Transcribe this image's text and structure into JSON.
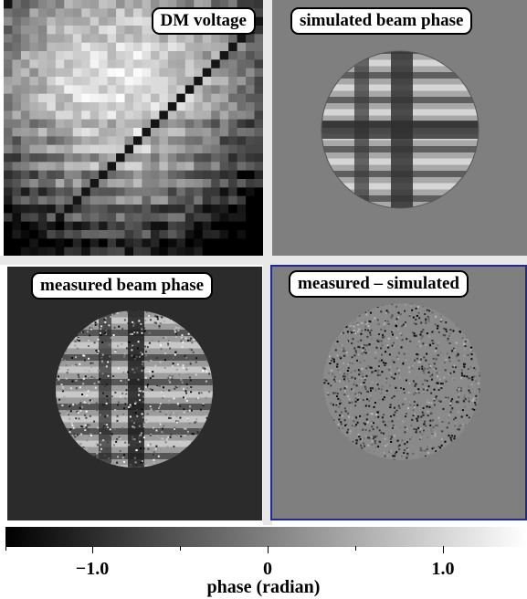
{
  "panels": {
    "top_left": "DM voltage",
    "top_right": "simulated beam phase",
    "bottom_left": "measured beam phase",
    "bottom_right": "measured – simulated"
  },
  "colorbar": {
    "ticks": [
      "−1.0",
      "0",
      "1.0"
    ],
    "label": "phase (radian)",
    "range": [
      -1.5,
      1.5
    ],
    "colors": {
      "low": "#000000",
      "high": "#ffffff"
    }
  }
}
